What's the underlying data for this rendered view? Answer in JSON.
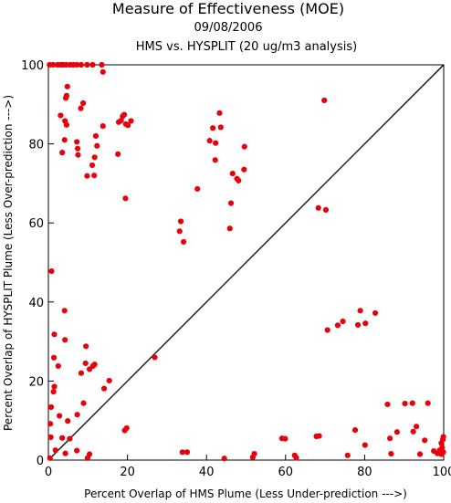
{
  "chart_data": {
    "type": "scatter",
    "title": "Measure of Effectiveness (MOE)",
    "subtitle_date": "09/08/2006",
    "subtitle_analysis": "HMS vs. HYSPLIT  (20 ug/m3 analysis)",
    "xlabel": "Percent Overlap of HMS Plume (Less Under-prediction --->)",
    "ylabel": "Percent Overlap of HYSPLIT Plume (Less Over-prediction --->)",
    "xlim": [
      0,
      100
    ],
    "ylim": [
      0,
      100
    ],
    "x_ticks": [
      "0",
      "20",
      "40",
      "60",
      "80",
      "100"
    ],
    "y_ticks": [
      "0",
      "20",
      "40",
      "60",
      "80",
      "100"
    ],
    "reference_line": "diagonal y = x",
    "point_color": "#e8000b",
    "points": [
      [
        0.3,
        100
      ],
      [
        1.2,
        100
      ],
      [
        2.3,
        100
      ],
      [
        3.1,
        100
      ],
      [
        3.7,
        100
      ],
      [
        4.5,
        100
      ],
      [
        5.5,
        100
      ],
      [
        6.3,
        100
      ],
      [
        7.2,
        100
      ],
      [
        8.3,
        100
      ],
      [
        9.8,
        100
      ],
      [
        11.2,
        100
      ],
      [
        13.5,
        100
      ],
      [
        13.8,
        98.2
      ],
      [
        4.8,
        94.5
      ],
      [
        4.6,
        92.2
      ],
      [
        4.4,
        91.6
      ],
      [
        8.8,
        90.3
      ],
      [
        8.2,
        89
      ],
      [
        3.1,
        87.2
      ],
      [
        4.2,
        85.8
      ],
      [
        4.6,
        84.8
      ],
      [
        13.8,
        84.5
      ],
      [
        4.1,
        81
      ],
      [
        7.2,
        80.5
      ],
      [
        7.4,
        78.8
      ],
      [
        3.5,
        77.8
      ],
      [
        7.5,
        77.2
      ],
      [
        12,
        82
      ],
      [
        12.3,
        79.5
      ],
      [
        11.7,
        76.6
      ],
      [
        11.1,
        74.6
      ],
      [
        9.8,
        71.9
      ],
      [
        11.6,
        72
      ],
      [
        17.8,
        85.5
      ],
      [
        18.4,
        85.9
      ],
      [
        18.8,
        87
      ],
      [
        19.2,
        87.4
      ],
      [
        19.6,
        85
      ],
      [
        20.1,
        84.7
      ],
      [
        20.9,
        85.8
      ],
      [
        17.6,
        77.4
      ],
      [
        19.5,
        66.2
      ],
      [
        40.8,
        80.8
      ],
      [
        41.6,
        84
      ],
      [
        43.3,
        87.8
      ],
      [
        43.6,
        84.2
      ],
      [
        42.3,
        80.2
      ],
      [
        42.2,
        75.9
      ],
      [
        37.7,
        68.6
      ],
      [
        46.6,
        72.5
      ],
      [
        47.7,
        71.2
      ],
      [
        48.1,
        70.7
      ],
      [
        49.6,
        79.3
      ],
      [
        49.5,
        73.5
      ],
      [
        46.2,
        65
      ],
      [
        45.9,
        58.6
      ],
      [
        33.2,
        57.9
      ],
      [
        33.5,
        60.4
      ],
      [
        34.2,
        55.2
      ],
      [
        69.8,
        91
      ],
      [
        68.3,
        63.8
      ],
      [
        70.2,
        63.3
      ],
      [
        0.8,
        47.8
      ],
      [
        4.1,
        37.8
      ],
      [
        1.5,
        31.8
      ],
      [
        4.2,
        30.4
      ],
      [
        1.4,
        25.9
      ],
      [
        2.5,
        23.8
      ],
      [
        9.5,
        28.8
      ],
      [
        9.4,
        24.5
      ],
      [
        11.3,
        23.8
      ],
      [
        11.7,
        24.2
      ],
      [
        10.4,
        23
      ],
      [
        8.3,
        22
      ],
      [
        15.4,
        20.1
      ],
      [
        14.1,
        18.1
      ],
      [
        8.9,
        14.4
      ],
      [
        1.5,
        18.6
      ],
      [
        1.3,
        17.3
      ],
      [
        0.7,
        13.4
      ],
      [
        2.8,
        11.2
      ],
      [
        7.3,
        11.5
      ],
      [
        4.9,
        9.9
      ],
      [
        0.5,
        9.2
      ],
      [
        0.6,
        5.8
      ],
      [
        3.5,
        5.6
      ],
      [
        5.4,
        5.4
      ],
      [
        1.8,
        2.5
      ],
      [
        4.3,
        1.7
      ],
      [
        7.2,
        2.4
      ],
      [
        10.4,
        1.5
      ],
      [
        9.9,
        0.5
      ],
      [
        0.4,
        0.5
      ],
      [
        19.3,
        7.5
      ],
      [
        19.8,
        8.1
      ],
      [
        26.9,
        26
      ],
      [
        33.9,
        2
      ],
      [
        35.1,
        2
      ],
      [
        44.5,
        0.4
      ],
      [
        52.1,
        1.6
      ],
      [
        51.7,
        0.7
      ],
      [
        59.1,
        5.5
      ],
      [
        59.9,
        5.4
      ],
      [
        62.3,
        1.2
      ],
      [
        62.7,
        0.6
      ],
      [
        67.8,
        6
      ],
      [
        68.5,
        6.1
      ],
      [
        70.6,
        32.9
      ],
      [
        73.2,
        34.1
      ],
      [
        74.5,
        35.1
      ],
      [
        78.3,
        34.2
      ],
      [
        78.9,
        37.8
      ],
      [
        80.2,
        34.6
      ],
      [
        82.7,
        37.2
      ],
      [
        77.6,
        7.6
      ],
      [
        75.7,
        1.2
      ],
      [
        80.1,
        3.8
      ],
      [
        85.8,
        14.1
      ],
      [
        86.4,
        5.5
      ],
      [
        86.7,
        1.6
      ],
      [
        88.2,
        7.1
      ],
      [
        90.2,
        14.3
      ],
      [
        92.1,
        14.4
      ],
      [
        92.3,
        7.2
      ],
      [
        93.1,
        8.5
      ],
      [
        94,
        1.5
      ],
      [
        95.2,
        5
      ],
      [
        96,
        14.4
      ],
      [
        97.5,
        2.3
      ],
      [
        98.4,
        1.7
      ],
      [
        99,
        2.5
      ],
      [
        99.4,
        1.5
      ],
      [
        99.6,
        3.1
      ],
      [
        99.8,
        5.2
      ],
      [
        99.9,
        5.9
      ],
      [
        99.4,
        4.3
      ],
      [
        99.9,
        2
      ]
    ]
  }
}
